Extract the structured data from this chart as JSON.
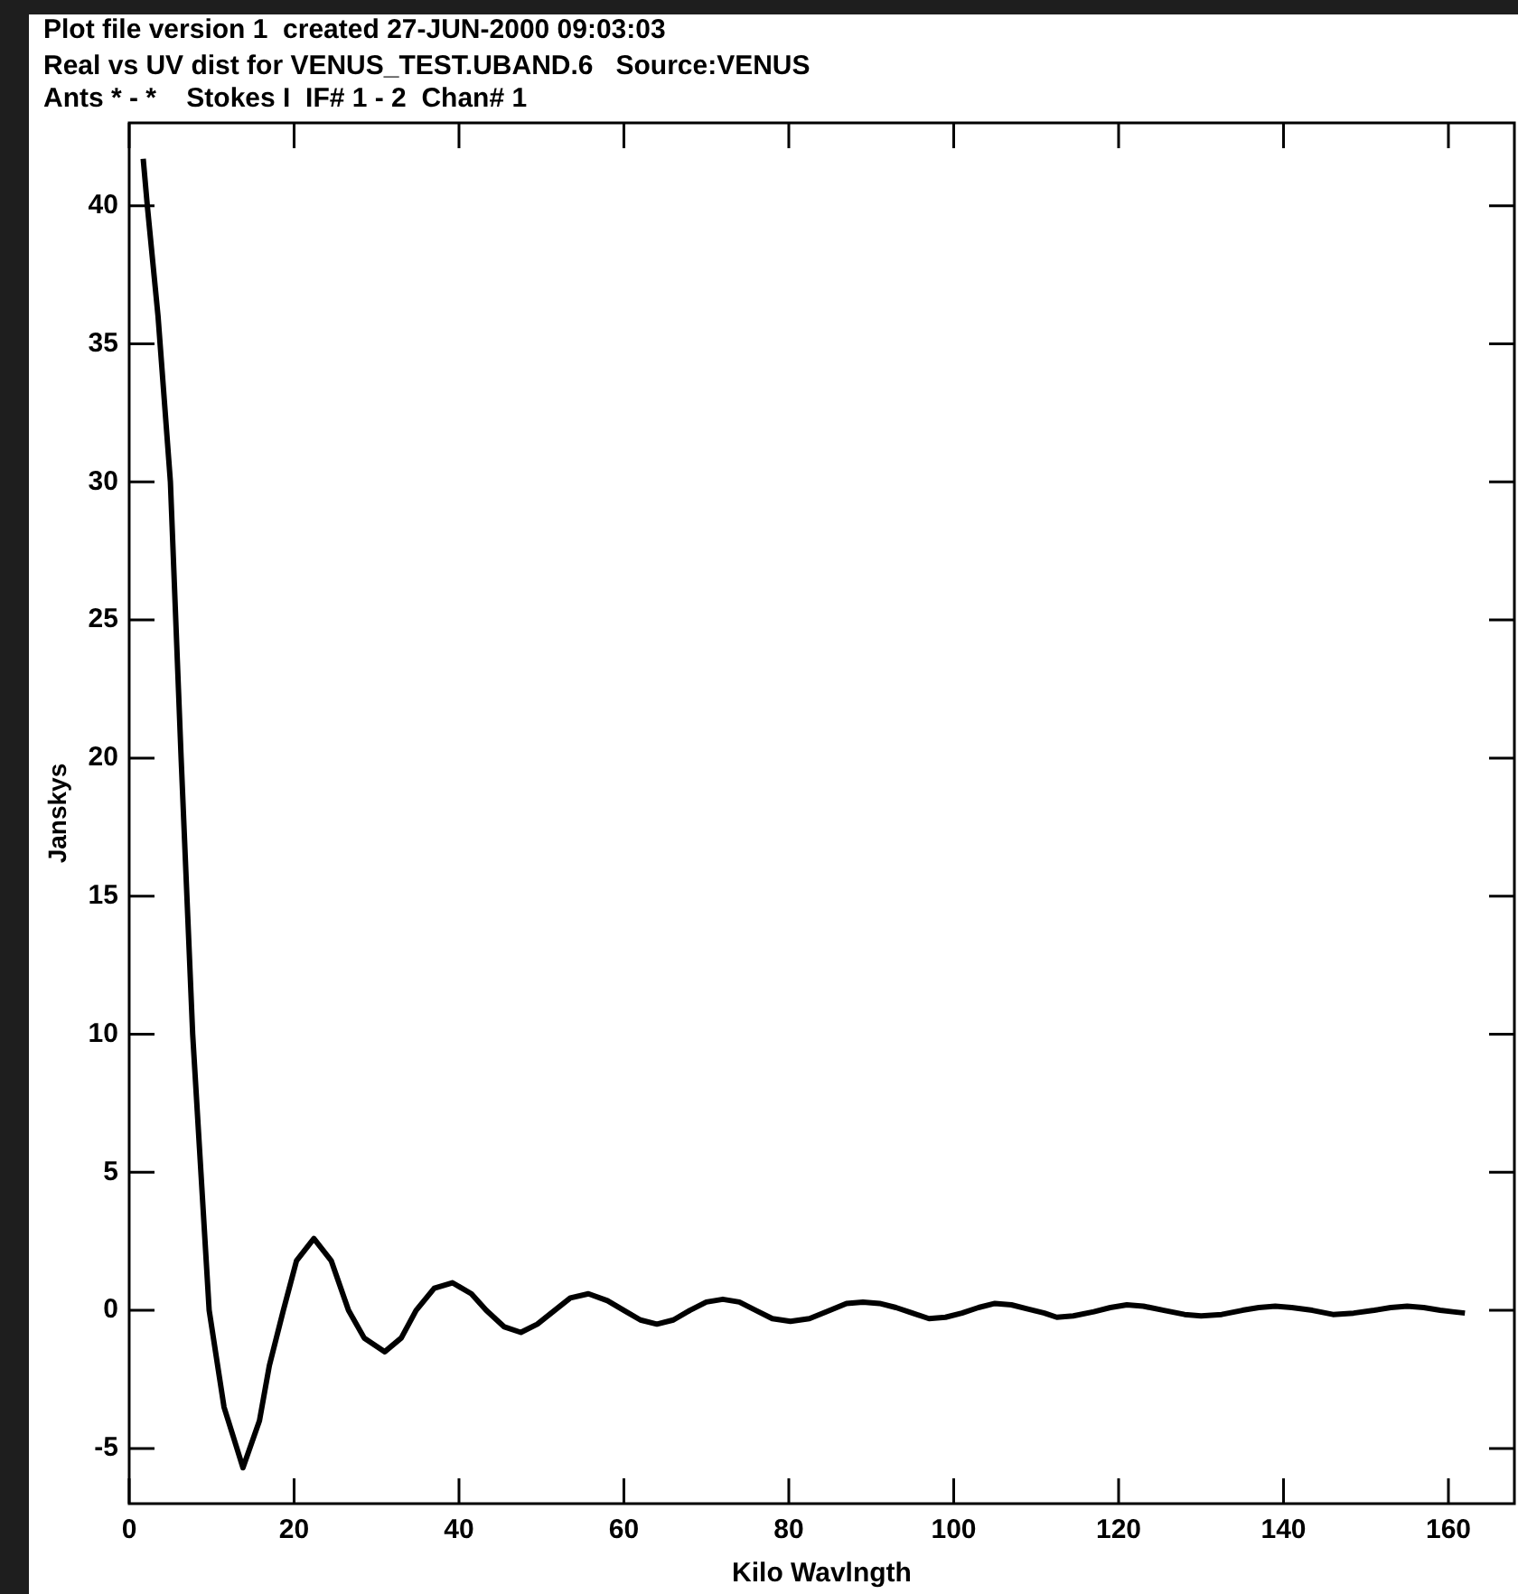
{
  "chart_data": {
    "type": "line",
    "title": "Plot file version 1  created 27-JUN-2000 09:03:03",
    "subtitle": "Real vs UV dist for VENUS_TEST.UBAND.6   Source:VENUS",
    "annotations": [
      "Ants * - *    Stokes I  IF# 1 - 2  Chan# 1"
    ],
    "xlabel": "Kilo Wavlngth",
    "ylabel": "Janskys",
    "x": [
      1.7,
      2.2,
      3.5,
      5,
      6.3,
      7.7,
      8.7,
      9.7,
      11.5,
      13.8,
      15.8,
      17,
      18.7,
      20.3,
      22.4,
      24.5,
      26.6,
      28.5,
      31,
      33,
      34.8,
      37,
      39.2,
      41.5,
      43.3,
      45.5,
      47.5,
      49.5,
      51.6,
      53.5,
      55.7,
      58,
      60,
      62,
      64,
      66,
      68,
      70,
      72,
      74,
      76,
      78,
      80.2,
      82.5,
      85,
      87,
      89,
      91,
      93,
      95,
      97,
      99,
      101,
      103,
      105,
      107,
      109,
      111,
      112.5,
      114.5,
      117,
      119,
      121,
      123,
      125.5,
      128,
      130,
      132.5,
      135,
      137,
      139,
      141,
      143.5,
      146,
      148.5,
      151,
      153,
      155,
      157,
      159,
      160.5,
      162
    ],
    "series": [
      {
        "color": "#000000",
        "values": [
          41.7,
          40,
          36,
          30,
          20,
          10,
          5,
          0,
          -3.5,
          -5.7,
          -4,
          -2,
          0,
          1.8,
          2.6,
          1.8,
          0,
          -1,
          -1.5,
          -1,
          0,
          0.8,
          1.0,
          0.6,
          0,
          -0.6,
          -0.8,
          -0.5,
          0,
          0.45,
          0.6,
          0.35,
          0,
          -0.35,
          -0.5,
          -0.35,
          0,
          0.3,
          0.4,
          0.3,
          0,
          -0.3,
          -0.4,
          -0.3,
          0,
          0.25,
          0.3,
          0.25,
          0.1,
          -0.1,
          -0.3,
          -0.25,
          -0.1,
          0.1,
          0.25,
          0.2,
          0.05,
          -0.1,
          -0.25,
          -0.2,
          -0.05,
          0.1,
          0.2,
          0.15,
          0,
          -0.15,
          -0.2,
          -0.15,
          0,
          0.1,
          0.15,
          0.1,
          0,
          -0.15,
          -0.1,
          0,
          0.1,
          0.15,
          0.1,
          0,
          -0.05,
          -0.1
        ]
      }
    ],
    "xlim": [
      0,
      168
    ],
    "ylim": [
      -7,
      43
    ],
    "xticks": [
      0,
      20,
      40,
      60,
      80,
      100,
      120,
      140,
      160
    ],
    "yticks": [
      -5,
      0,
      5,
      10,
      15,
      20,
      25,
      30,
      35,
      40
    ],
    "grid": false,
    "legend": false,
    "marker": "none",
    "line_style": "solid"
  }
}
